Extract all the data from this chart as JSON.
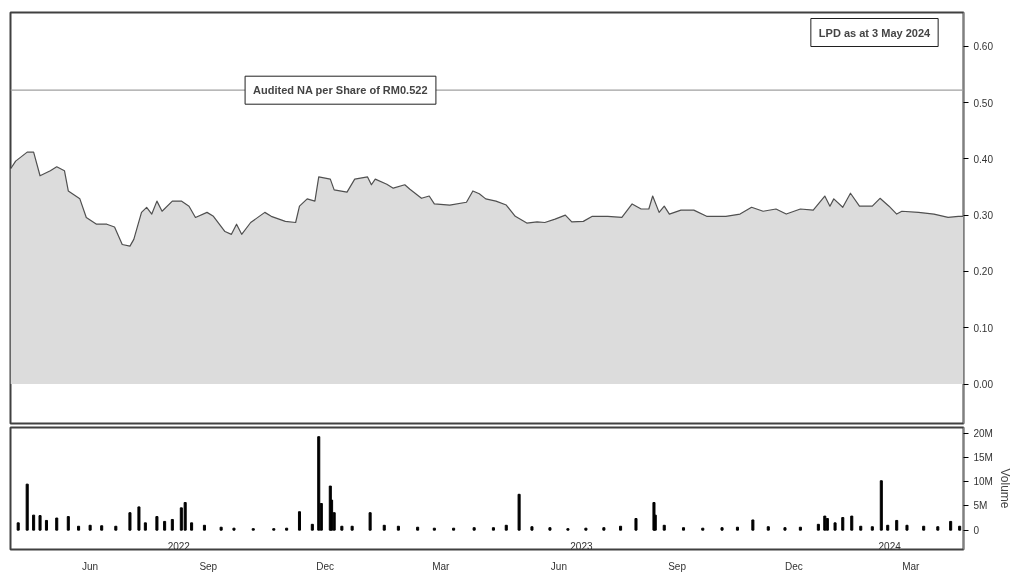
{
  "chart_data": [
    {
      "type": "area",
      "xlim": [
        "2022-04-14",
        "2024-04-25"
      ],
      "ylim": [
        -0.07,
        0.66
      ],
      "yticks": [
        {
          "value": 0,
          "label": "0.00"
        },
        {
          "value": 0.1,
          "label": "0.10"
        },
        {
          "value": 0.2,
          "label": "0.20"
        },
        {
          "value": 0.3,
          "label": "0.30"
        },
        {
          "value": 0.4,
          "label": "0.40"
        },
        {
          "value": 0.5,
          "label": "0.50"
        },
        {
          "value": 0.6,
          "label": "0.60"
        }
      ],
      "tick_labels": "y",
      "grid": false,
      "x": [
        "2022-04-14",
        "2022-04-18",
        "2022-04-27",
        "2022-05-02",
        "2022-05-07",
        "2022-05-15",
        "2022-05-20",
        "2022-05-26",
        "2022-05-29",
        "2022-06-07",
        "2022-06-12",
        "2022-06-20",
        "2022-06-28",
        "2022-07-04",
        "2022-07-10",
        "2022-07-16",
        "2022-07-19",
        "2022-07-25",
        "2022-07-29",
        "2022-08-02",
        "2022-08-06",
        "2022-08-10",
        "2022-08-18",
        "2022-08-25",
        "2022-08-31",
        "2022-09-05",
        "2022-09-14",
        "2022-09-19",
        "2022-09-28",
        "2022-10-03",
        "2022-10-07",
        "2022-10-11",
        "2022-10-18",
        "2022-10-29",
        "2022-11-03",
        "2022-11-14",
        "2022-11-22",
        "2022-11-25",
        "2022-12-01",
        "2022-12-07",
        "2022-12-10",
        "2022-12-19",
        "2022-12-22",
        "2023-01-01",
        "2023-01-07",
        "2023-01-17",
        "2023-01-20",
        "2023-01-23",
        "2023-02-01",
        "2023-02-06",
        "2023-02-15",
        "2023-02-19",
        "2023-02-28",
        "2023-03-06",
        "2023-03-10",
        "2023-03-22",
        "2023-04-04",
        "2023-04-09",
        "2023-04-14",
        "2023-04-19",
        "2023-04-27",
        "2023-05-05",
        "2023-05-12",
        "2023-05-21",
        "2023-05-29",
        "2023-06-04",
        "2023-06-12",
        "2023-06-20",
        "2023-06-25",
        "2023-07-04",
        "2023-07-11",
        "2023-07-23",
        "2023-08-03",
        "2023-08-11",
        "2023-08-18",
        "2023-08-24",
        "2023-08-27",
        "2023-09-01",
        "2023-09-05",
        "2023-09-09",
        "2023-09-18",
        "2023-09-28",
        "2023-10-08",
        "2023-10-23",
        "2023-11-03",
        "2023-11-12",
        "2023-11-21",
        "2023-12-01",
        "2023-12-09",
        "2023-12-20",
        "2023-12-30",
        "2024-01-08",
        "2024-01-12",
        "2024-01-15",
        "2024-01-22",
        "2024-01-28",
        "2024-02-04",
        "2024-02-14",
        "2024-02-20",
        "2024-02-27",
        "2024-03-04",
        "2024-03-08",
        "2024-03-21",
        "2024-04-02",
        "2024-04-13",
        "2024-04-21",
        "2024-04-25"
      ],
      "series": [
        {
          "color": "#dcdcdc",
          "values": [
            0.382,
            0.396,
            0.412,
            0.412,
            0.37,
            0.379,
            0.386,
            0.379,
            0.343,
            0.329,
            0.296,
            0.284,
            0.284,
            0.279,
            0.248,
            0.245,
            0.257,
            0.305,
            0.314,
            0.302,
            0.325,
            0.307,
            0.325,
            0.325,
            0.316,
            0.296,
            0.305,
            0.298,
            0.271,
            0.266,
            0.284,
            0.266,
            0.287,
            0.305,
            0.298,
            0.289,
            0.287,
            0.316,
            0.329,
            0.325,
            0.368,
            0.364,
            0.345,
            0.341,
            0.364,
            0.368,
            0.354,
            0.364,
            0.355,
            0.348,
            0.354,
            0.346,
            0.33,
            0.334,
            0.32,
            0.318,
            0.323,
            0.343,
            0.338,
            0.329,
            0.325,
            0.318,
            0.298,
            0.286,
            0.288,
            0.287,
            0.293,
            0.3,
            0.288,
            0.289,
            0.298,
            0.298,
            0.296,
            0.32,
            0.311,
            0.311,
            0.334,
            0.305,
            0.316,
            0.302,
            0.309,
            0.309,
            0.298,
            0.298,
            0.302,
            0.314,
            0.307,
            0.311,
            0.302,
            0.311,
            0.309,
            0.334,
            0.316,
            0.329,
            0.314,
            0.339,
            0.316,
            0.316,
            0.33,
            0.316,
            0.302,
            0.307,
            0.305,
            0.302,
            0.296,
            0.298,
            0.298
          ]
        }
      ],
      "ref_lines": [
        {
          "axis": "y",
          "value": 0.522,
          "label": "Audited NA per Share of RM0.522",
          "color": "#a0a0a0"
        }
      ],
      "annotations": [
        "LPD as at 3 May 2024"
      ]
    },
    {
      "type": "bar",
      "xlim": [
        "2022-04-14",
        "2024-04-25"
      ],
      "ylim": [
        -4000000,
        21200000
      ],
      "ylabel": "Volume",
      "yticks": [
        0,
        {
          "value": 5000000,
          "label": "5M"
        },
        {
          "value": 10000000,
          "label": "10M"
        },
        {
          "value": 15000000,
          "label": "15M"
        },
        {
          "value": 20000000,
          "label": "20M"
        }
      ],
      "xticks": [
        {
          "value": "2022-06-15",
          "label": "Jun"
        },
        {
          "value": "2022-09-15",
          "label": "Sep"
        },
        {
          "value": "2022-12-15",
          "label": "Dec"
        },
        {
          "value": "2023-03-15",
          "label": "Mar"
        },
        {
          "value": "2023-06-15",
          "label": "Jun"
        },
        {
          "value": "2023-09-15",
          "label": "Sep"
        },
        {
          "value": "2023-12-15",
          "label": "Dec"
        },
        {
          "value": "2024-03-15",
          "label": "Mar"
        }
      ],
      "grid": false,
      "x": [
        "2022-04-20",
        "2022-04-27",
        "2022-05-02",
        "2022-05-07",
        "2022-05-12",
        "2022-05-20",
        "2022-05-29",
        "2022-06-06",
        "2022-06-15",
        "2022-06-24",
        "2022-07-05",
        "2022-07-16",
        "2022-07-23",
        "2022-07-28",
        "2022-08-06",
        "2022-08-12",
        "2022-08-18",
        "2022-08-25",
        "2022-08-28",
        "2022-09-02",
        "2022-09-12",
        "2022-09-25",
        "2022-10-05",
        "2022-10-20",
        "2022-11-05",
        "2022-11-15",
        "2022-11-25",
        "2022-12-05",
        "2022-12-10",
        "2022-12-12",
        "2022-12-19",
        "2022-12-20",
        "2022-12-22",
        "2022-12-28",
        "2023-01-05",
        "2023-01-19",
        "2023-01-30",
        "2023-02-10",
        "2023-02-25",
        "2023-03-10",
        "2023-03-25",
        "2023-04-10",
        "2023-04-25",
        "2023-05-05",
        "2023-05-15",
        "2023-05-25",
        "2023-06-08",
        "2023-06-22",
        "2023-07-06",
        "2023-07-20",
        "2023-08-02",
        "2023-08-14",
        "2023-08-28",
        "2023-08-29",
        "2023-09-05",
        "2023-09-20",
        "2023-10-05",
        "2023-10-20",
        "2023-11-01",
        "2023-11-13",
        "2023-11-25",
        "2023-12-08",
        "2023-12-20",
        "2024-01-03",
        "2024-01-08",
        "2024-01-10",
        "2024-01-16",
        "2024-01-22",
        "2024-01-29",
        "2024-02-05",
        "2024-02-14",
        "2024-02-21",
        "2024-02-26",
        "2024-03-04",
        "2024-03-12",
        "2024-03-25",
        "2024-04-05",
        "2024-04-15",
        "2024-04-22"
      ],
      "series": [
        {
          "color": "#000000",
          "values": [
            1500000,
            9500000,
            3100000,
            3000000,
            2000000,
            2500000,
            2800000,
            800000,
            1000000,
            900000,
            800000,
            3600000,
            4800000,
            1500000,
            2800000,
            1800000,
            2200000,
            4600000,
            5700000,
            1500000,
            1000000,
            600000,
            400000,
            300000,
            300000,
            400000,
            3800000,
            1200000,
            19300000,
            5500000,
            9100000,
            6200000,
            3600000,
            800000,
            800000,
            3600000,
            1000000,
            800000,
            600000,
            400000,
            400000,
            500000,
            500000,
            1000000,
            7400000,
            700000,
            500000,
            300000,
            400000,
            500000,
            800000,
            2400000,
            5700000,
            3100000,
            1000000,
            500000,
            400000,
            500000,
            600000,
            2100000,
            700000,
            500000,
            600000,
            1200000,
            2900000,
            2400000,
            1500000,
            2600000,
            2900000,
            800000,
            700000,
            10200000,
            1000000,
            2000000,
            1000000,
            800000,
            700000,
            1800000,
            800000
          ]
        }
      ],
      "annotations": [
        "2022",
        "2023",
        "2024"
      ]
    }
  ]
}
